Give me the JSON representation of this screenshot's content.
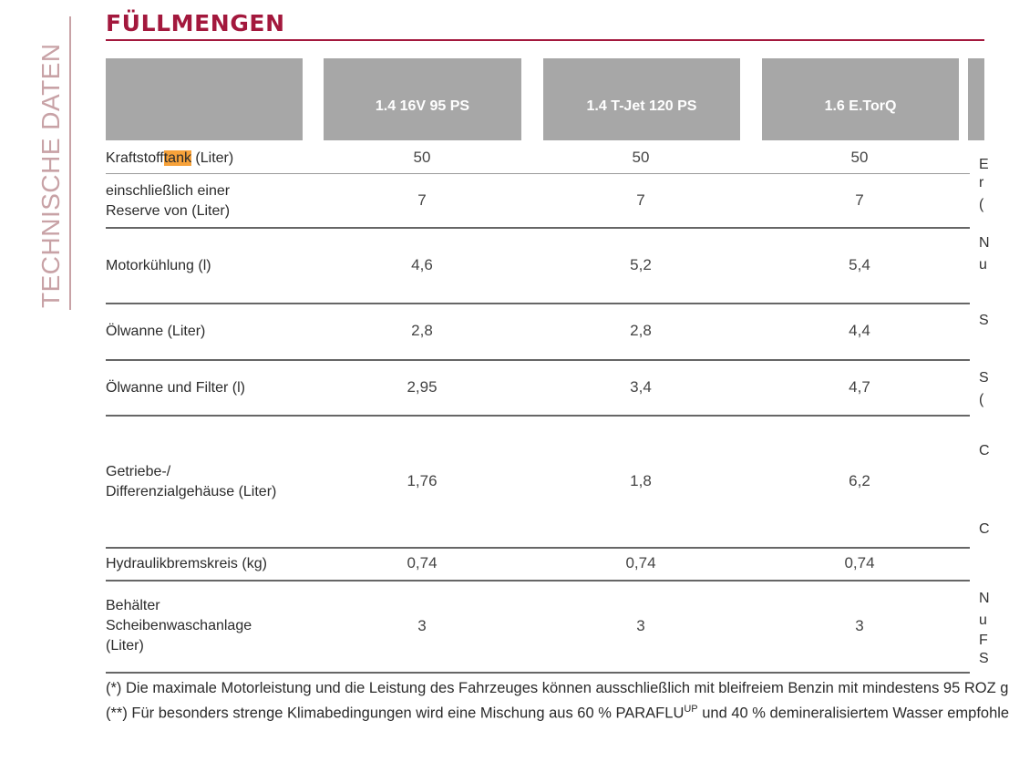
{
  "side_title": "TECHNISCHE DATEN",
  "title": "FÜLLMENGEN",
  "columns": [
    "1.4 16V 95 PS",
    "1.4 T-Jet 120 PS",
    "1.6 E.TorQ"
  ],
  "rows": [
    {
      "label_pre": "Kraftstoff",
      "label_hl": "tank",
      "label_post": " (Liter)",
      "values": [
        "50",
        "50",
        "50"
      ]
    },
    {
      "label_lines": [
        "einschließlich einer",
        "Reserve von (Liter)"
      ],
      "values": [
        "7",
        "7",
        "7"
      ]
    },
    {
      "label_lines": [
        "Motorkühlung (l)"
      ],
      "values": [
        "4,6",
        "5,2",
        "5,4"
      ]
    },
    {
      "label_lines": [
        "Ölwanne (Liter)"
      ],
      "values": [
        "2,8",
        "2,8",
        "4,4"
      ]
    },
    {
      "label_lines": [
        "Ölwanne und Filter (l)"
      ],
      "values": [
        "2,95",
        "3,4",
        "4,7"
      ]
    },
    {
      "label_lines": [
        "Getriebe-/",
        "Differenzialgehäuse (Liter)"
      ],
      "values": [
        "1,76",
        "1,8",
        "6,2"
      ]
    },
    {
      "label_lines": [
        "Hydraulikbremskreis (kg)"
      ],
      "values": [
        "0,74",
        "0,74",
        "0,74"
      ]
    },
    {
      "label_lines": [
        "Behälter",
        "Scheibenwaschanlage",
        "(Liter)"
      ],
      "values": [
        "3",
        "3",
        "3"
      ]
    }
  ],
  "right_edge_fragments": [
    "E",
    "r",
    "(",
    "N",
    "u",
    "S",
    "S",
    "(",
    "C",
    "C",
    "N",
    "u",
    "F",
    "S"
  ],
  "footnotes": {
    "note1": "(*) Die maximale Motorleistung und die Leistung des Fahrzeuges können ausschließlich mit bleifreiem Benzin mit mindestens 95 ROZ g",
    "note2_pre": "(**) Für besonders strenge Klimabedingungen wird eine Mischung aus 60 % PARAFLU",
    "note2_sup": "UP",
    "note2_post": " und 40 % demineralisiertem Wasser empfohle"
  }
}
